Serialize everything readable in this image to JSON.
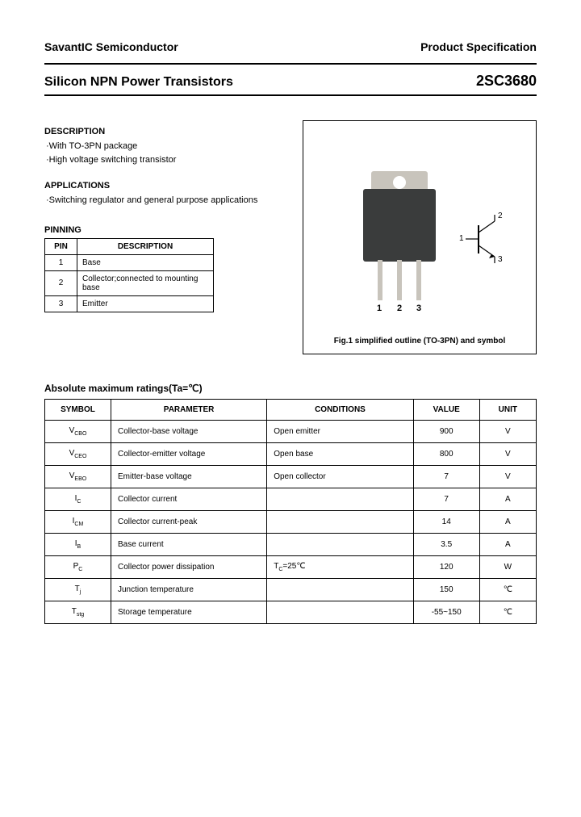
{
  "header": {
    "company": "SavantIC Semiconductor",
    "spec": "Product Specification",
    "title_left": "Silicon NPN Power Transistors",
    "title_right": "2SC3680"
  },
  "description": {
    "heading": "DESCRIPTION",
    "lines": [
      "·With TO-3PN package",
      "·High voltage switching transistor"
    ]
  },
  "applications": {
    "heading": "APPLICATIONS",
    "lines": [
      "·Switching regulator and general purpose applications"
    ]
  },
  "pinning": {
    "heading": "PINNING",
    "columns": [
      "PIN",
      "DESCRIPTION"
    ],
    "rows": [
      {
        "pin": "1",
        "desc": "Base"
      },
      {
        "pin": "2",
        "desc": "Collector;connected to mounting base"
      },
      {
        "pin": "3",
        "desc": "Emitter"
      }
    ]
  },
  "figure": {
    "caption": "Fig.1 simplified outline (TO-3PN) and symbol",
    "pin_labels": [
      "1",
      "2",
      "3"
    ],
    "symbol_terminals": {
      "collector": "2",
      "base": "1",
      "emitter": "3"
    },
    "colors": {
      "body": "#3a3c3c",
      "tab": "#c8c4bc",
      "pins": "#c8c4bc"
    }
  },
  "ratings": {
    "heading": "Absolute maximum ratings(Ta=℃)",
    "columns": [
      "SYMBOL",
      "PARAMETER",
      "CONDITIONS",
      "VALUE",
      "UNIT"
    ],
    "rows": [
      {
        "symbol_html": "V<sub>CBO</sub>",
        "parameter": "Collector-base voltage",
        "conditions": "Open emitter",
        "value": "900",
        "unit": "V"
      },
      {
        "symbol_html": "V<sub>CEO</sub>",
        "parameter": "Collector-emitter voltage",
        "conditions": "Open base",
        "value": "800",
        "unit": "V"
      },
      {
        "symbol_html": "V<sub>EBO</sub>",
        "parameter": "Emitter-base voltage",
        "conditions": "Open collector",
        "value": "7",
        "unit": "V"
      },
      {
        "symbol_html": "I<sub>C</sub>",
        "parameter": "Collector current",
        "conditions": "",
        "value": "7",
        "unit": "A"
      },
      {
        "symbol_html": "I<sub>CM</sub>",
        "parameter": "Collector current-peak",
        "conditions": "",
        "value": "14",
        "unit": "A"
      },
      {
        "symbol_html": "I<sub>B</sub>",
        "parameter": "Base current",
        "conditions": "",
        "value": "3.5",
        "unit": "A"
      },
      {
        "symbol_html": "P<sub>C</sub>",
        "parameter": "Collector power dissipation",
        "conditions": "T<sub>C</sub>=25℃",
        "value": "120",
        "unit": "W"
      },
      {
        "symbol_html": "T<sub>j</sub>",
        "parameter": "Junction temperature",
        "conditions": "",
        "value": "150",
        "unit": "℃"
      },
      {
        "symbol_html": "T<sub>stg</sub>",
        "parameter": "Storage temperature",
        "conditions": "",
        "value": "-55~150",
        "unit": "℃"
      }
    ]
  }
}
